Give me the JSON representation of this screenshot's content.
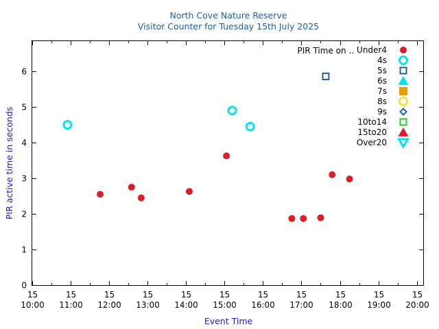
{
  "chart_data": {
    "type": "scatter",
    "title": "North Cove Nature Reserve",
    "subtitle": "Visitor Counter for Tuesday 15th July 2025",
    "xlabel": "Event Time",
    "ylabel": "PIR active time in seconds",
    "legend_title": "PIR Time on ..",
    "legend_position": "top-right",
    "xlim": [
      600,
      1210
    ],
    "ylim": [
      0,
      6.85
    ],
    "x_ticks": [
      {
        "minute": 600,
        "top": "15",
        "bottom": "10:00"
      },
      {
        "minute": 660,
        "top": "15",
        "bottom": "11:00"
      },
      {
        "minute": 720,
        "top": "15",
        "bottom": "12:00"
      },
      {
        "minute": 780,
        "top": "15",
        "bottom": "13:00"
      },
      {
        "minute": 840,
        "top": "15",
        "bottom": "14:00"
      },
      {
        "minute": 900,
        "top": "15",
        "bottom": "15:00"
      },
      {
        "minute": 960,
        "top": "15",
        "bottom": "16:00"
      },
      {
        "minute": 1020,
        "top": "15",
        "bottom": "17:00"
      },
      {
        "minute": 1080,
        "top": "15",
        "bottom": "18:00"
      },
      {
        "minute": 1140,
        "top": "15",
        "bottom": "19:00"
      },
      {
        "minute": 1200,
        "top": "15",
        "bottom": "20:00"
      }
    ],
    "y_ticks": [
      0,
      1,
      2,
      3,
      4,
      5,
      6
    ],
    "series": [
      {
        "name": "Under4",
        "marker": "filled-circle",
        "color": "#dd1e26",
        "points": [
          {
            "x": 706,
            "y": 2.55
          },
          {
            "x": 755,
            "y": 2.75
          },
          {
            "x": 770,
            "y": 2.45
          },
          {
            "x": 845,
            "y": 2.63
          },
          {
            "x": 903,
            "y": 3.63
          },
          {
            "x": 1005,
            "y": 1.87
          },
          {
            "x": 1023,
            "y": 1.87
          },
          {
            "x": 1050,
            "y": 1.89
          },
          {
            "x": 1068,
            "y": 3.1
          },
          {
            "x": 1095,
            "y": 2.98
          }
        ]
      },
      {
        "name": "4s",
        "marker": "open-circle",
        "color": "#00e5ee",
        "points": [
          {
            "x": 655,
            "y": 4.5
          },
          {
            "x": 912,
            "y": 4.9
          },
          {
            "x": 940,
            "y": 4.45
          }
        ]
      },
      {
        "name": "5s",
        "marker": "open-square",
        "color": "#1f5fa6",
        "points": [
          {
            "x": 1058,
            "y": 5.86
          }
        ]
      },
      {
        "name": "6s",
        "marker": "filled-triangle",
        "color": "#00e5ee",
        "points": []
      },
      {
        "name": "7s",
        "marker": "filled-square",
        "color": "#e69f00",
        "points": []
      },
      {
        "name": "8s",
        "marker": "open-circle",
        "color": "#f0e442",
        "points": []
      },
      {
        "name": "9s",
        "marker": "open-diamond",
        "color": "#1f5fa6",
        "points": []
      },
      {
        "name": "10to14",
        "marker": "open-square",
        "color": "#22cc22",
        "points": []
      },
      {
        "name": "15to20",
        "marker": "filled-triangle",
        "color": "#dd1e26",
        "points": []
      },
      {
        "name": "Over20",
        "marker": "open-triangle-down",
        "color": "#00e5ee",
        "points": []
      }
    ]
  }
}
